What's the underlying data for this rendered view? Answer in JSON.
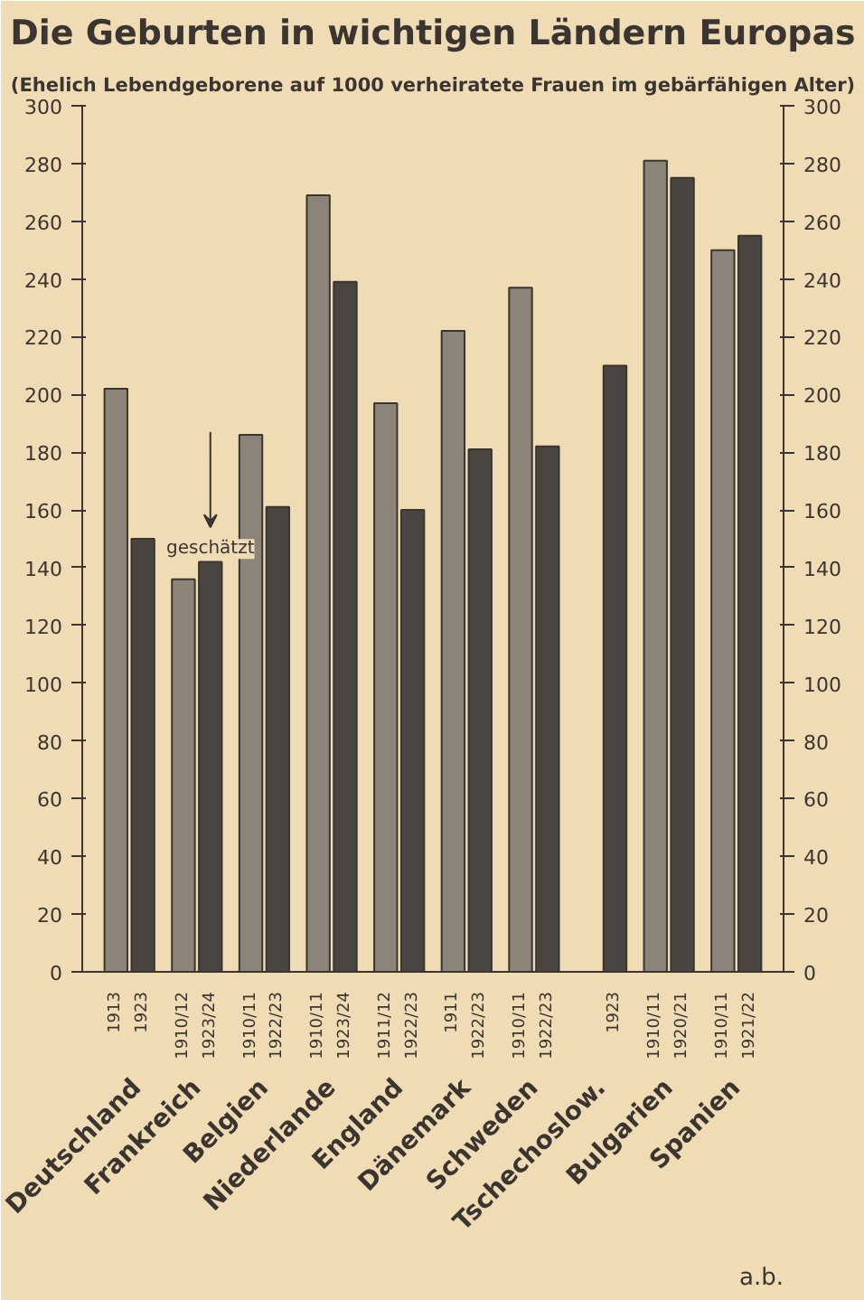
{
  "chart_data": {
    "type": "bar",
    "title": "Die Geburten in wichtigen Ländern Europas",
    "subtitle": "(Ehelich Lebendgeborene auf 1000 verheiratete Frauen im gebärfähigen Alter)",
    "categories": [
      "Deutschland",
      "Frankreich",
      "Belgien",
      "Niederlande",
      "England",
      "Dänemark",
      "Schweden",
      "Tschechoslow.",
      "Bulgarien",
      "Spanien"
    ],
    "series": [
      {
        "color": "#8c8478",
        "values": [
          202,
          136,
          186,
          269,
          197,
          222,
          237,
          null,
          281,
          250
        ]
      },
      {
        "color": "#4a4540",
        "values": [
          150,
          142,
          161,
          239,
          160,
          181,
          182,
          210,
          275,
          255
        ]
      }
    ],
    "annotations": [
      {
        "text": "geschätzt",
        "x": "Frankreich",
        "y": 142
      },
      "1913",
      "1923",
      "1910/12",
      "1923/24",
      "1910/11",
      "1922/23",
      "1910/11",
      "1923/24",
      "1911/12",
      "1922/23",
      "1911",
      "1922/23",
      "1910/11",
      "1922/23",
      "1923",
      "1910/11",
      "1920/21",
      "1910/11",
      "1921/22",
      "a.b."
    ],
    "ylim": [
      0,
      300
    ],
    "yticks": [
      0,
      20,
      40,
      60,
      80,
      100,
      120,
      140,
      160,
      180,
      200,
      220,
      240,
      260,
      280,
      300
    ],
    "y2lim": [
      0,
      300
    ],
    "y2ticks": [
      0,
      20,
      40,
      60,
      80,
      100,
      120,
      140,
      160,
      180,
      200,
      220,
      240,
      260,
      280,
      300
    ],
    "grid": false
  }
}
